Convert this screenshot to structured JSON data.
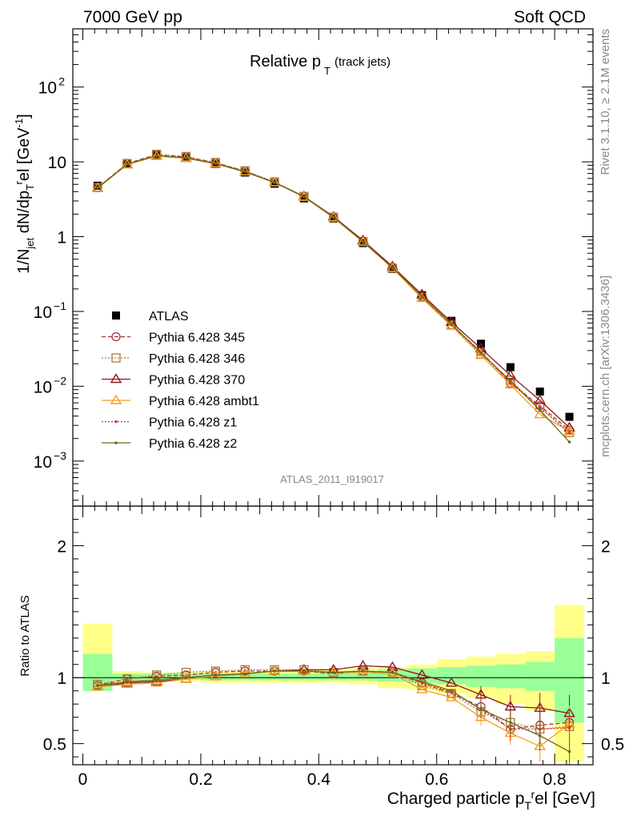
{
  "header": {
    "left": "7000 GeV pp",
    "right": "Soft QCD"
  },
  "side": {
    "top": "Rivet 3.1.10, ≥ 2.1M events",
    "bottom": "mcplots.cern.ch [arXiv:1306.3436]"
  },
  "watermark": "ATLAS_2011_I919017",
  "chart_data": [
    {
      "type": "line",
      "panel": "main",
      "title_main": "Relative p",
      "title_sub": "T",
      "title_extra": "(track jets)",
      "ylabel": "1/N_jet dN/dp_T^rel [GeV^-1]",
      "yscale": "log",
      "ylim": [
        0.00025,
        600
      ],
      "xlim": [
        -0.017,
        0.865
      ],
      "yticks": [
        {
          "v": 0.001,
          "base": "10",
          "exp": "−3"
        },
        {
          "v": 0.01,
          "base": "10",
          "exp": "−2"
        },
        {
          "v": 0.1,
          "base": "10",
          "exp": "−1"
        },
        {
          "v": 1,
          "base": "1",
          "exp": ""
        },
        {
          "v": 10,
          "base": "10",
          "exp": ""
        },
        {
          "v": 100,
          "base": "10",
          "exp": "2"
        }
      ],
      "x": [
        0.025,
        0.075,
        0.125,
        0.175,
        0.225,
        0.275,
        0.325,
        0.375,
        0.425,
        0.475,
        0.525,
        0.575,
        0.625,
        0.675,
        0.725,
        0.775,
        0.825
      ],
      "series": [
        {
          "name": "ATLAS",
          "color": "#000000",
          "values": [
            4.8,
            9.6,
            12.4,
            11.4,
            9.4,
            7.2,
            5.1,
            3.25,
            1.75,
            0.82,
            0.37,
            0.165,
            0.075,
            0.037,
            0.018,
            0.0085,
            0.0039
          ]
        },
        {
          "name": "Pythia 6.428 345",
          "color": "#a83232",
          "values": [
            4.5,
            9.5,
            12.5,
            11.6,
            9.7,
            7.5,
            5.35,
            3.4,
            1.8,
            0.86,
            0.38,
            0.158,
            0.066,
            0.029,
            0.011,
            0.0055,
            0.0026
          ]
        },
        {
          "name": "Pythia 6.428 346",
          "color": "#a87a3c",
          "values": [
            4.55,
            9.45,
            12.6,
            11.8,
            9.8,
            7.6,
            5.4,
            3.45,
            1.82,
            0.86,
            0.38,
            0.155,
            0.066,
            0.027,
            0.012,
            0.0052,
            0.0024
          ]
        },
        {
          "name": "Pythia 6.428 370",
          "color": "#8b1a1a",
          "values": [
            4.45,
            9.2,
            12.0,
            11.2,
            9.45,
            7.35,
            5.3,
            3.45,
            1.85,
            0.89,
            0.4,
            0.168,
            0.072,
            0.032,
            0.014,
            0.0065,
            0.0028
          ]
        },
        {
          "name": "Pythia 6.428 ambt1",
          "color": "#f0a020",
          "values": [
            4.45,
            9.15,
            11.9,
            11.2,
            9.5,
            7.4,
            5.3,
            3.4,
            1.8,
            0.85,
            0.38,
            0.15,
            0.064,
            0.026,
            0.0105,
            0.0042,
            0.0025
          ]
        },
        {
          "name": "Pythia 6.428 z1",
          "color": "#e03030",
          "values": [
            4.5,
            9.3,
            12.1,
            11.3,
            9.5,
            7.4,
            5.3,
            3.42,
            1.82,
            0.86,
            0.385,
            0.158,
            0.067,
            0.028,
            0.011,
            0.0052,
            0.0024
          ]
        },
        {
          "name": "Pythia 6.428 z2",
          "color": "#6b6b1a",
          "values": [
            4.5,
            9.3,
            12.1,
            11.3,
            9.5,
            7.4,
            5.3,
            3.42,
            1.82,
            0.86,
            0.385,
            0.16,
            0.068,
            0.028,
            0.0118,
            0.0048,
            0.0018
          ]
        }
      ]
    },
    {
      "type": "line",
      "panel": "ratio",
      "ylabel": "Ratio to ATLAS",
      "xlabel": "Charged particle p_T^rel [GeV]",
      "ylim": [
        0.34,
        2.3
      ],
      "xlim": [
        -0.017,
        0.865
      ],
      "yticks": [
        0.5,
        1,
        2
      ],
      "xticks": [
        0,
        0.2,
        0.4,
        0.6,
        0.8
      ],
      "band_edges": [
        0,
        0.05,
        0.1,
        0.15,
        0.2,
        0.25,
        0.3,
        0.35,
        0.4,
        0.45,
        0.5,
        0.55,
        0.6,
        0.65,
        0.7,
        0.75,
        0.8,
        0.85
      ],
      "band_inner": [
        [
          0.9,
          1.18
        ],
        [
          0.98,
          1.03
        ],
        [
          0.98,
          1.03
        ],
        [
          0.985,
          1.03
        ],
        [
          0.98,
          1.03
        ],
        [
          0.98,
          1.03
        ],
        [
          0.98,
          1.03
        ],
        [
          0.98,
          1.03
        ],
        [
          0.98,
          1.04
        ],
        [
          0.98,
          1.05
        ],
        [
          0.97,
          1.06
        ],
        [
          0.96,
          1.07
        ],
        [
          0.95,
          1.08
        ],
        [
          0.93,
          1.09
        ],
        [
          0.92,
          1.1
        ],
        [
          0.9,
          1.12
        ],
        [
          0.66,
          1.3
        ]
      ],
      "band_outer": [
        [
          0.9,
          1.41
        ],
        [
          0.97,
          1.05
        ],
        [
          0.97,
          1.04
        ],
        [
          0.97,
          1.04
        ],
        [
          0.96,
          1.05
        ],
        [
          0.96,
          1.05
        ],
        [
          0.96,
          1.05
        ],
        [
          0.96,
          1.06
        ],
        [
          0.96,
          1.06
        ],
        [
          0.95,
          1.07
        ],
        [
          0.92,
          1.08
        ],
        [
          0.91,
          1.1
        ],
        [
          0.88,
          1.14
        ],
        [
          0.85,
          1.16
        ],
        [
          0.8,
          1.18
        ],
        [
          0.75,
          1.2
        ],
        [
          0.36,
          1.55
        ]
      ],
      "series": [
        {
          "name": "Pythia 6.428 345",
          "values": [
            0.94,
            0.99,
            1.01,
            1.02,
            1.04,
            1.05,
            1.05,
            1.05,
            1.03,
            1.05,
            1.04,
            0.96,
            0.88,
            0.78,
            0.61,
            0.64,
            0.66
          ]
        },
        {
          "name": "Pythia 6.428 346",
          "values": [
            0.95,
            0.99,
            1.02,
            1.04,
            1.05,
            1.06,
            1.06,
            1.06,
            1.04,
            1.05,
            1.04,
            0.94,
            0.88,
            0.74,
            0.66,
            0.61,
            0.63
          ]
        },
        {
          "name": "Pythia 6.428 370",
          "values": [
            0.93,
            0.96,
            0.97,
            0.99,
            1.01,
            1.03,
            1.05,
            1.06,
            1.06,
            1.09,
            1.08,
            1.02,
            0.96,
            0.87,
            0.78,
            0.77,
            0.73
          ]
        },
        {
          "name": "Pythia 6.428 ambt1",
          "values": [
            0.93,
            0.95,
            0.96,
            0.99,
            1.01,
            1.03,
            1.05,
            1.05,
            1.04,
            1.04,
            1.03,
            0.91,
            0.85,
            0.7,
            0.58,
            0.48,
            0.65
          ]
        },
        {
          "name": "Pythia 6.428 z1",
          "values": [
            0.94,
            0.97,
            0.98,
            1.0,
            1.02,
            1.03,
            1.05,
            1.05,
            1.04,
            1.05,
            1.04,
            0.96,
            0.89,
            0.76,
            0.61,
            0.61,
            0.62
          ]
        },
        {
          "name": "Pythia 6.428 z2",
          "values": [
            0.94,
            0.97,
            0.98,
            1.0,
            1.02,
            1.03,
            1.05,
            1.05,
            1.04,
            1.05,
            1.04,
            0.97,
            0.9,
            0.76,
            0.66,
            0.56,
            0.44
          ]
        }
      ]
    }
  ]
}
